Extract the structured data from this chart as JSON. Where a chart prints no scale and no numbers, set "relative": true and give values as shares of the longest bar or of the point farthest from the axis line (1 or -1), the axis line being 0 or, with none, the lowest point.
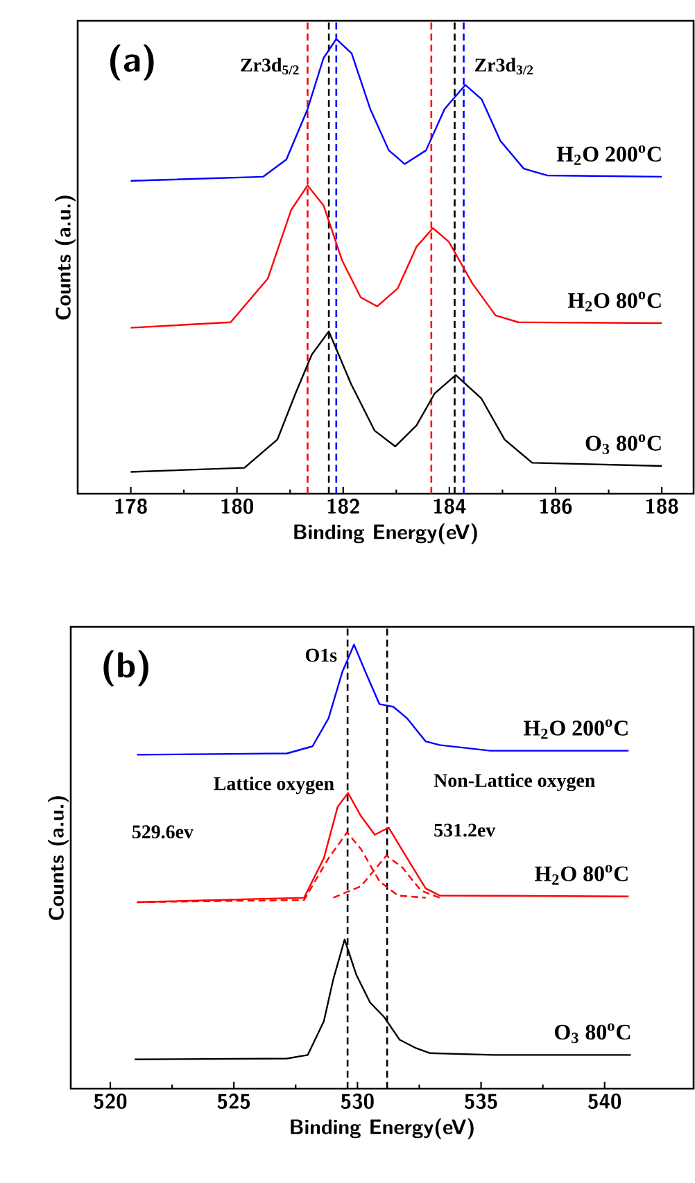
{
  "chart_data": [
    {
      "type": "line",
      "relative": true,
      "xlabel": "Binding Energy(eV)",
      "ylabel": "Counts (a.u.)",
      "xlim": [
        177,
        188.6
      ],
      "xticks": [
        178,
        180,
        182,
        184,
        186,
        188
      ],
      "marker": "none",
      "line_style": "solid",
      "series": [
        {
          "name": "H$_{2}$O 200$^{o}$C",
          "color": "#0000ff",
          "x": [
            178.0,
            180.49,
            180.93,
            181.33,
            181.63,
            181.87,
            182.16,
            182.51,
            182.86,
            183.16,
            183.56,
            183.91,
            184.3,
            184.61,
            184.96,
            185.4,
            185.84,
            188.0
          ],
          "values": [
            0.688,
            0.697,
            0.735,
            0.846,
            0.958,
            1.0,
            0.968,
            0.846,
            0.755,
            0.725,
            0.755,
            0.846,
            0.899,
            0.867,
            0.776,
            0.715,
            0.7,
            0.697
          ]
        },
        {
          "name": "H$_{2}$O 80$^{o}$C",
          "color": "#ff0000",
          "x": [
            178.0,
            179.88,
            180.58,
            181.02,
            181.33,
            181.63,
            181.98,
            182.33,
            182.64,
            183.03,
            183.38,
            183.69,
            183.99,
            184.43,
            184.87,
            185.3,
            188.0
          ],
          "values": [
            0.365,
            0.377,
            0.473,
            0.624,
            0.678,
            0.634,
            0.513,
            0.432,
            0.412,
            0.452,
            0.543,
            0.584,
            0.554,
            0.463,
            0.392,
            0.377,
            0.375
          ]
        },
        {
          "name": "O$_{3}$ 80$^{o}$C",
          "color": "#000000",
          "x": [
            178.0,
            180.14,
            180.76,
            181.1,
            181.41,
            181.73,
            182.15,
            182.59,
            182.98,
            183.38,
            183.72,
            184.12,
            184.6,
            185.04,
            185.56,
            188.0
          ],
          "values": [
            0.048,
            0.057,
            0.119,
            0.22,
            0.306,
            0.357,
            0.241,
            0.139,
            0.104,
            0.15,
            0.22,
            0.261,
            0.21,
            0.119,
            0.068,
            0.061
          ]
        }
      ],
      "ref_lines": [
        {
          "axis": "x",
          "value": 181.33,
          "color": "#ff0000",
          "line_style": "dashed"
        },
        {
          "axis": "x",
          "value": 181.73,
          "color": "#000000",
          "line_style": "dashed"
        },
        {
          "axis": "x",
          "value": 181.87,
          "color": "#0000ff",
          "line_style": "dashed"
        },
        {
          "axis": "x",
          "value": 183.66,
          "color": "#ff0000",
          "line_style": "dashed"
        },
        {
          "axis": "x",
          "value": 184.1,
          "color": "#000000",
          "line_style": "dashed"
        },
        {
          "axis": "x",
          "value": 184.27,
          "color": "#0000ff",
          "line_style": "dashed"
        }
      ],
      "annotations": [
        "(a)",
        {
          "text": "Zr3d$_{5/2}$",
          "x": 181.33,
          "y": 0.94
        },
        {
          "text": "Zr3d$_{3/2}$",
          "x": 184.27,
          "y": 0.94
        }
      ]
    },
    {
      "type": "line",
      "relative": true,
      "xlabel": "Binding Energy(eV)",
      "ylabel": "Counts (a.u.)",
      "xlim": [
        518.4,
        543.6
      ],
      "xticks": [
        520,
        525,
        530,
        535,
        540
      ],
      "marker": "none",
      "line_style": "solid",
      "series": [
        {
          "name": "H$_{2}$O 200$^{o}$C",
          "color": "#0000ff",
          "x": [
            521.08,
            527.15,
            528.18,
            528.83,
            529.39,
            529.86,
            530.32,
            530.89,
            531.45,
            532.01,
            532.76,
            533.32,
            535.37,
            540.97
          ],
          "values": [
            0.752,
            0.755,
            0.771,
            0.834,
            0.939,
            1.0,
            0.939,
            0.866,
            0.86,
            0.834,
            0.782,
            0.774,
            0.761,
            0.761
          ]
        },
        {
          "name": "H$_{2}$O 80$^{o}$C",
          "color": "#ff0000",
          "x": [
            521.08,
            527.84,
            528.64,
            529.2,
            529.62,
            530.14,
            530.7,
            531.26,
            532.01,
            532.76,
            533.32,
            540.97
          ],
          "values": [
            0.42,
            0.43,
            0.519,
            0.635,
            0.666,
            0.614,
            0.572,
            0.588,
            0.519,
            0.451,
            0.435,
            0.433
          ]
        },
        {
          "color": "#ff0000",
          "line_style": "dashed",
          "x": [
            521.08,
            527.84,
            528.83,
            529.58,
            530.14,
            530.89,
            531.64,
            532.76
          ],
          "values": [
            0.42,
            0.425,
            0.519,
            0.577,
            0.54,
            0.467,
            0.435,
            0.43
          ]
        },
        {
          "color": "#ff0000",
          "line_style": "dashed",
          "x": [
            529.02,
            530.14,
            531.17,
            531.82,
            532.57,
            533.32
          ],
          "values": [
            0.43,
            0.456,
            0.525,
            0.498,
            0.446,
            0.43
          ]
        },
        {
          "name": "O$_{3}$ 80$^{o}$C",
          "color": "#000000",
          "x": [
            520.99,
            527.15,
            527.99,
            528.64,
            529.02,
            529.48,
            529.95,
            530.51,
            531.07,
            531.71,
            532.38,
            532.94,
            535.56,
            541.06
          ],
          "values": [
            0.066,
            0.068,
            0.076,
            0.152,
            0.246,
            0.336,
            0.257,
            0.194,
            0.162,
            0.11,
            0.091,
            0.08,
            0.076,
            0.076
          ]
        }
      ],
      "ref_lines": [
        {
          "axis": "x",
          "value": 529.6,
          "color": "#000000",
          "line_style": "dashed"
        },
        {
          "axis": "x",
          "value": 531.2,
          "color": "#000000",
          "line_style": "dashed"
        }
      ],
      "annotations": [
        "(b)",
        {
          "text": "O1s",
          "x": 529.6,
          "y": 0.976
        },
        {
          "text": "Lattice oxygen",
          "x": 529.6,
          "y": 0.683
        },
        "529.6ev",
        {
          "text": "Non-Lattice oxygen",
          "x": 531.2,
          "y": 0.69
        },
        {
          "text": "531.2ev",
          "x": 531.2,
          "y": 0.582
        }
      ]
    }
  ]
}
